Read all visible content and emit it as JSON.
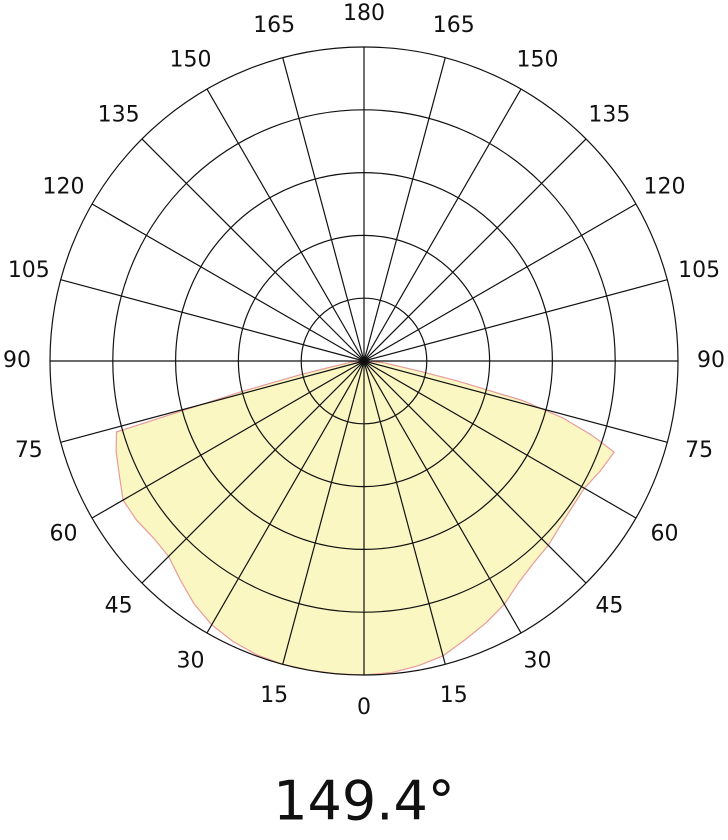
{
  "chart_data": {
    "type": "polar",
    "annotation": "149.4°",
    "angle_ticks": [
      0,
      15,
      30,
      45,
      60,
      75,
      90,
      105,
      120,
      135,
      150,
      165,
      180
    ],
    "rlim": [
      0,
      5
    ],
    "rgrid": [
      1,
      2,
      3,
      4,
      5
    ],
    "fill_color": "#fbf7c2",
    "line_color": "#e89a9a",
    "x": [
      -90,
      -85,
      -80,
      -78,
      -76,
      -74,
      -70,
      -65,
      -60,
      -55,
      -50,
      -45,
      -40,
      -35,
      -30,
      -25,
      -20,
      -15,
      -10,
      -5,
      0,
      5,
      10,
      15,
      20,
      25,
      30,
      35,
      40,
      45,
      50,
      55,
      60,
      65,
      70,
      72,
      74,
      76,
      78,
      80,
      85,
      90
    ],
    "values": [
      0,
      0.2,
      0.5,
      1.0,
      2.0,
      4.1,
      4.2,
      4.3,
      4.43,
      4.42,
      4.38,
      4.4,
      4.55,
      4.72,
      4.85,
      4.93,
      4.98,
      5.0,
      5.0,
      5.0,
      5.0,
      4.98,
      4.93,
      4.86,
      4.72,
      4.6,
      4.47,
      4.3,
      4.2,
      4.15,
      4.08,
      4.05,
      4.05,
      4.15,
      4.24,
      3.8,
      3.3,
      2.6,
      1.5,
      0.8,
      0.3,
      0
    ]
  }
}
